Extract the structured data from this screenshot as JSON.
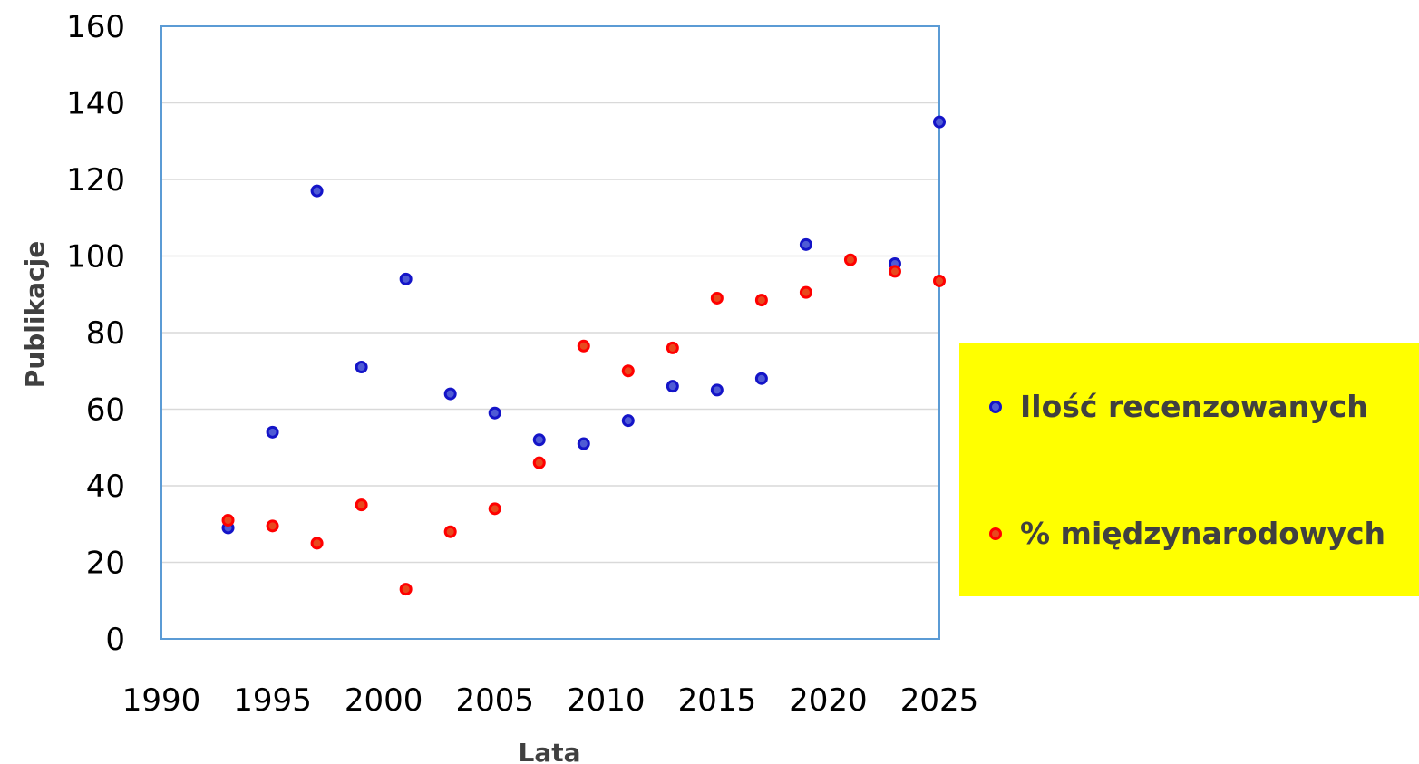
{
  "chart_data": {
    "type": "scatter",
    "xlabel": "Lata",
    "ylabel": "Publikacje",
    "xlim": [
      1990,
      2025
    ],
    "ylim": [
      0,
      160
    ],
    "xticks": [
      1990,
      1995,
      2000,
      2005,
      2010,
      2015,
      2020,
      2025
    ],
    "yticks": [
      0,
      20,
      40,
      60,
      80,
      100,
      120,
      140,
      160
    ],
    "grid": "horizontal",
    "legend_position": "right",
    "series": [
      {
        "name": "Ilość recenzowanych",
        "fill": "#4f5bd5",
        "stroke": "#1414c8",
        "x": [
          1993,
          1995,
          1997,
          1999,
          2001,
          2003,
          2005,
          2007,
          2009,
          2011,
          2013,
          2015,
          2017,
          2019,
          2023,
          2025
        ],
        "y": [
          29,
          54,
          117,
          71,
          94,
          64,
          59,
          52,
          51,
          57,
          66,
          65,
          68,
          103,
          98,
          135
        ]
      },
      {
        "name": "% międzynarodowych",
        "fill": "#e8491d",
        "stroke": "#ff0000",
        "x": [
          1993,
          1995,
          1997,
          1999,
          2001,
          2003,
          2005,
          2007,
          2009,
          2011,
          2013,
          2015,
          2017,
          2019,
          2021,
          2023,
          2025
        ],
        "y": [
          31,
          29.5,
          25,
          35,
          13,
          28,
          34,
          46,
          76.5,
          70,
          76,
          89,
          88.5,
          90.5,
          99,
          96,
          93.5
        ]
      }
    ]
  },
  "colors": {
    "plot_border": "#5b9bd5",
    "gridline": "#d9d9d9",
    "legend_background": "#ffff00"
  }
}
